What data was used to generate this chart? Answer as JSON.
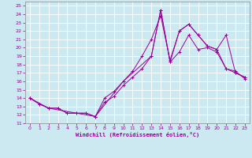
{
  "xlabel": "Windchill (Refroidissement éolien,°C)",
  "bg_color": "#cce8f0",
  "line_color": "#990099",
  "grid_color": "#ffffff",
  "xlim": [
    -0.5,
    23.5
  ],
  "ylim": [
    11,
    25.5
  ],
  "xticks": [
    0,
    1,
    2,
    3,
    4,
    5,
    6,
    7,
    8,
    9,
    10,
    11,
    12,
    13,
    14,
    15,
    16,
    17,
    18,
    19,
    20,
    21,
    22,
    23
  ],
  "yticks": [
    11,
    12,
    13,
    14,
    15,
    16,
    17,
    18,
    19,
    20,
    21,
    22,
    23,
    24,
    25
  ],
  "lines": [
    {
      "x": [
        0,
        1,
        2,
        3,
        4,
        5,
        6,
        7,
        8,
        9,
        10,
        11,
        12,
        13,
        14,
        15,
        16,
        17,
        18,
        19,
        20,
        21,
        22,
        23
      ],
      "y": [
        14,
        13.3,
        12.8,
        12.8,
        12.2,
        12.2,
        12.2,
        11.8,
        13.5,
        14.2,
        15.5,
        16.5,
        17.5,
        19.0,
        24.5,
        18.3,
        19.5,
        21.5,
        19.8,
        20.0,
        19.5,
        17.5,
        17.2,
        16.3
      ]
    },
    {
      "x": [
        0,
        1,
        2,
        3,
        4,
        5,
        6,
        7,
        8,
        9,
        10,
        11,
        12,
        13,
        14,
        15,
        16,
        17,
        18,
        19,
        20,
        21,
        22,
        23
      ],
      "y": [
        14,
        13.3,
        12.8,
        12.8,
        12.2,
        12.2,
        12.2,
        11.8,
        14.0,
        14.8,
        16.0,
        17.2,
        19.0,
        21.0,
        23.8,
        18.5,
        22.0,
        22.8,
        21.5,
        20.2,
        19.8,
        17.5,
        17.0,
        16.5
      ]
    },
    {
      "x": [
        0,
        2,
        7,
        10,
        13,
        14,
        15,
        16,
        17,
        18,
        19,
        20,
        21,
        22,
        23
      ],
      "y": [
        14,
        12.8,
        11.8,
        16.0,
        19.0,
        24.5,
        18.3,
        22.0,
        22.8,
        21.5,
        20.2,
        19.8,
        21.5,
        17.0,
        16.5
      ]
    }
  ]
}
